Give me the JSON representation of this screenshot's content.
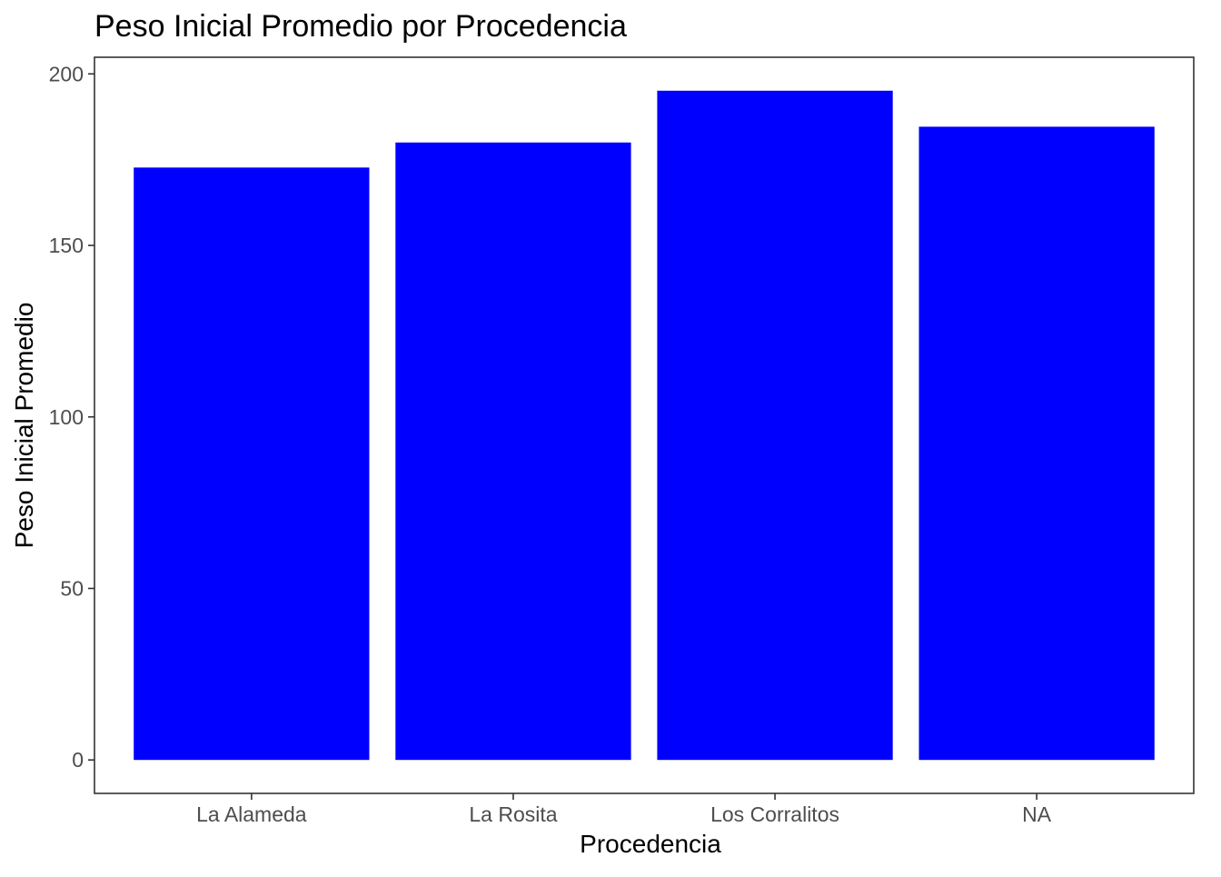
{
  "chart_data": {
    "type": "bar",
    "title": "Peso Inicial Promedio por Procedencia",
    "xlabel": "Procedencia",
    "ylabel": "Peso Inicial Promedio",
    "categories": [
      "La Alameda",
      "La Rosita",
      "Los Corralitos",
      "NA"
    ],
    "values": [
      172.7,
      180.0,
      195.1,
      184.6
    ],
    "ylim": [
      -9.75,
      204.85
    ],
    "yticks": [
      0,
      50,
      100,
      150,
      200
    ],
    "bar_color": "#0000FF",
    "grid": false,
    "legend": "none"
  }
}
